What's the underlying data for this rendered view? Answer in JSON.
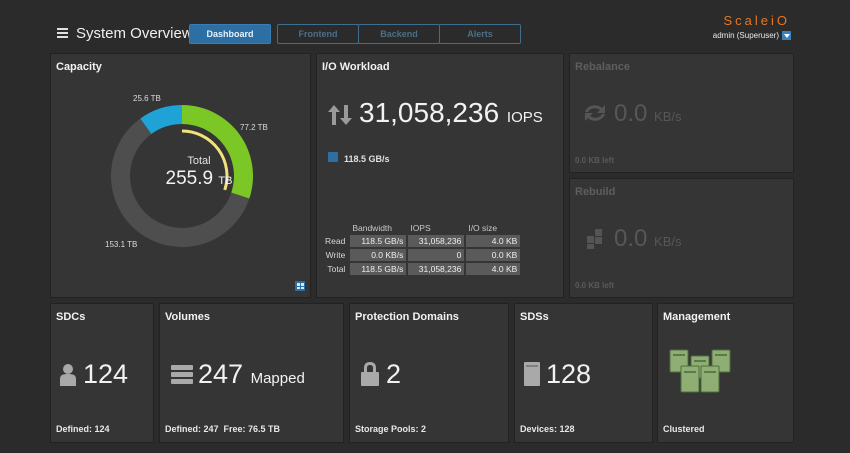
{
  "header": {
    "title": "System Overview",
    "tabs": [
      {
        "label": "Dashboard",
        "active": true
      },
      {
        "label": "Frontend",
        "active": false
      },
      {
        "label": "Backend",
        "active": false
      },
      {
        "label": "Alerts",
        "active": false
      }
    ],
    "brand": "ScaleiO",
    "user": "admin (Superuser)"
  },
  "capacity": {
    "title": "Capacity",
    "total_label": "Total",
    "total_value": "255.9",
    "total_unit": "TB",
    "label_top": "25.6 TB",
    "label_right": "77.2 TB",
    "label_bottom": "153.1 TB",
    "segments": [
      {
        "value": 77.2,
        "color": "#7ac726"
      },
      {
        "value": 153.1,
        "color": "#4e4e4e"
      },
      {
        "value": 25.6,
        "color": "#1fa3d6"
      }
    ],
    "inner_arc_fraction": 0.3,
    "inner_arc_color": "#f2e27a"
  },
  "io": {
    "title": "I/O Workload",
    "iops_value": "31,058,236",
    "iops_unit": "IOPS",
    "bandwidth": "118.5 GB/s",
    "columns": [
      "Bandwidth",
      "IOPS",
      "I/O size"
    ],
    "rows": [
      {
        "label": "Read",
        "values": [
          "118.5 GB/s",
          "31,058,236",
          "4.0 KB"
        ]
      },
      {
        "label": "Write",
        "values": [
          "0.0 KB/s",
          "0",
          "0.0 KB"
        ]
      },
      {
        "label": "Total",
        "values": [
          "118.5 GB/s",
          "31,058,236",
          "4.0 KB"
        ]
      }
    ]
  },
  "rebalance": {
    "title": "Rebalance",
    "value": "0.0",
    "unit": "KB/s",
    "footer": "0.0 KB left"
  },
  "rebuild": {
    "title": "Rebuild",
    "value": "0.0",
    "unit": "KB/s",
    "footer": "0.0 KB left"
  },
  "sdcs": {
    "title": "SDCs",
    "value": "124",
    "footer": "Defined: 124"
  },
  "volumes": {
    "title": "Volumes",
    "value": "247",
    "suffix": "Mapped",
    "footer": "Defined: 247  Free: 76.5 TB"
  },
  "protection": {
    "title": "Protection Domains",
    "value": "2",
    "footer": "Storage Pools: 2"
  },
  "sdss": {
    "title": "SDSs",
    "value": "128",
    "footer": "Devices: 128"
  },
  "management": {
    "title": "Management",
    "footer": "Clustered"
  },
  "icons": [
    "menu-icon",
    "chevron-down-icon",
    "grid-icon",
    "io-arrows-icon",
    "bandwidth-icon",
    "rebalance-icon",
    "rebuild-icon",
    "user-icon",
    "volumes-icon",
    "lock-icon",
    "server-icon",
    "cluster-icon"
  ]
}
